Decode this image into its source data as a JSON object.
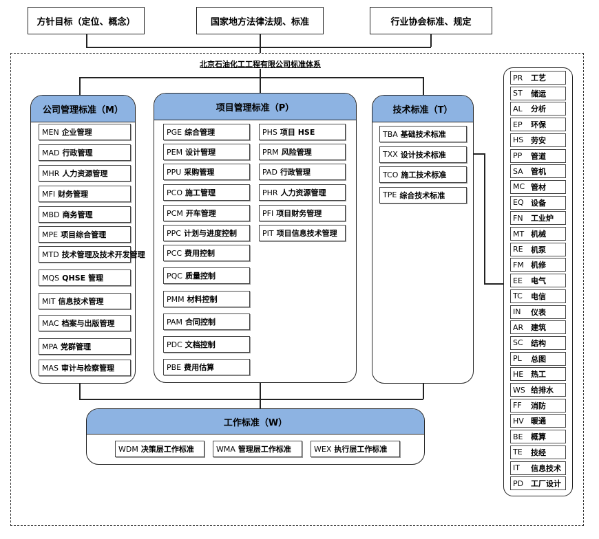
{
  "top_sources": [
    "方针目标（定位、概念）",
    "国家地方法律法规、标准",
    "行业协会标准、规定"
  ],
  "system_title": "北京石油化工工程有限公司标准体系",
  "panels": {
    "M": {
      "title": "公司管理标准（M）",
      "items": [
        {
          "code": "MEN",
          "name": "企业管理"
        },
        {
          "code": "MAD",
          "name": "行政管理"
        },
        {
          "code": "MHR",
          "name": "人力资源管理"
        },
        {
          "code": "MFI",
          "name": "财务管理"
        },
        {
          "code": "MBD",
          "name": "商务管理"
        },
        {
          "code": "MPE",
          "name": "项目综合管理"
        },
        {
          "code": "MTD",
          "name": "技术管理及技术开发管理"
        },
        {
          "code": "MQS",
          "name": "QHSE 管理"
        },
        {
          "code": "MIT",
          "name": "信息技术管理"
        },
        {
          "code": "MAC",
          "name": "档案与出版管理"
        },
        {
          "code": "MPA",
          "name": "党群管理"
        },
        {
          "code": "MAS",
          "name": "审计与检察管理"
        }
      ]
    },
    "P": {
      "title": "项目管理标准（P）",
      "left": [
        {
          "code": "PGE",
          "name": "综合管理"
        },
        {
          "code": "PEM",
          "name": "设计管理"
        },
        {
          "code": "PPU",
          "name": "采购管理"
        },
        {
          "code": "PCO",
          "name": "施工管理"
        },
        {
          "code": "PCM",
          "name": "开车管理"
        },
        {
          "code": "PPC",
          "name": "计划与进度控制"
        },
        {
          "code": "PCC",
          "name": "费用控制"
        },
        {
          "code": "PQC",
          "name": "质量控制"
        },
        {
          "code": "PMM",
          "name": "材料控制"
        },
        {
          "code": "PAM",
          "name": "合同控制"
        },
        {
          "code": "PDC",
          "name": "文档控制"
        },
        {
          "code": "PBE",
          "name": "费用估算"
        }
      ],
      "right": [
        {
          "code": "PHS",
          "name": "项目 HSE"
        },
        {
          "code": "PRM",
          "name": "风险管理"
        },
        {
          "code": "PAD",
          "name": "行政管理"
        },
        {
          "code": "PHR",
          "name": "人力资源管理"
        },
        {
          "code": "PFI",
          "name": "项目财务管理"
        },
        {
          "code": "PIT",
          "name": "项目信息技术管理"
        }
      ]
    },
    "T": {
      "title": "技术标准（T）",
      "items": [
        {
          "code": "TBA",
          "name": "基础技术标准"
        },
        {
          "code": "TXX",
          "name": "设计技术标准"
        },
        {
          "code": "TCO",
          "name": "施工技术标准"
        },
        {
          "code": "TPE",
          "name": "综合技术标准"
        }
      ]
    },
    "W": {
      "title": "工作标准（W）",
      "items": [
        {
          "code": "WDM",
          "name": "决策层工作标准"
        },
        {
          "code": "WMA",
          "name": "管理层工作标准"
        },
        {
          "code": "WEX",
          "name": "执行层工作标准"
        }
      ]
    }
  },
  "disciplines": [
    {
      "code": "PR",
      "name": "工艺"
    },
    {
      "code": "ST",
      "name": "储运"
    },
    {
      "code": "AL",
      "name": "分析"
    },
    {
      "code": "EP",
      "name": "环保"
    },
    {
      "code": "HS",
      "name": "劳安"
    },
    {
      "code": "PP",
      "name": "管道"
    },
    {
      "code": "SA",
      "name": "管机"
    },
    {
      "code": "MC",
      "name": "管材"
    },
    {
      "code": "EQ",
      "name": "设备"
    },
    {
      "code": "FN",
      "name": "工业炉"
    },
    {
      "code": "MT",
      "name": "机械"
    },
    {
      "code": "RE",
      "name": "机泵"
    },
    {
      "code": "FM",
      "name": "机修"
    },
    {
      "code": "EE",
      "name": "电气"
    },
    {
      "code": "TC",
      "name": "电信"
    },
    {
      "code": "IN",
      "name": "仪表"
    },
    {
      "code": "AR",
      "name": "建筑"
    },
    {
      "code": "SC",
      "name": "结构"
    },
    {
      "code": "PL",
      "name": "总图"
    },
    {
      "code": "HE",
      "name": "热工"
    },
    {
      "code": "WS",
      "name": "给排水"
    },
    {
      "code": "FF",
      "name": "消防"
    },
    {
      "code": "HV",
      "name": "暖通"
    },
    {
      "code": "BE",
      "name": "概算"
    },
    {
      "code": "TE",
      "name": "技经"
    },
    {
      "code": "IT",
      "name": "信息技术"
    },
    {
      "code": "PD",
      "name": "工厂设计"
    }
  ],
  "colors": {
    "header": "#8db3e2"
  }
}
